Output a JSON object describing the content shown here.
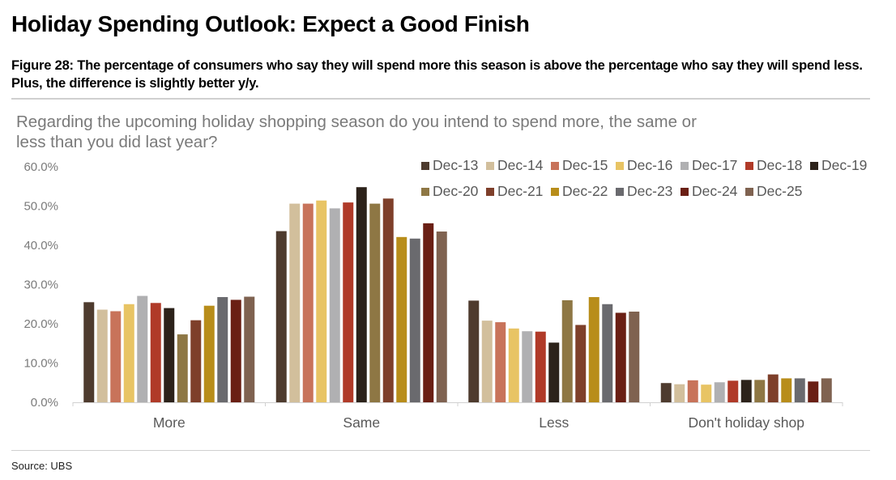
{
  "header": {
    "title": "Holiday Spending Outlook: Expect a Good Finish",
    "subtitle": "Figure 28: The percentage of consumers who say they will spend more this season is above the percentage who say they will spend less. Plus, the difference is slightly better y/y."
  },
  "footer": {
    "source": "Source: UBS"
  },
  "chart_data": {
    "type": "bar",
    "title": "Regarding the upcoming holiday shopping season do you intend to spend more, the same or less than you did last year?",
    "categories": [
      "More",
      "Same",
      "Less",
      "Don't holiday shop"
    ],
    "ylim": [
      0,
      60
    ],
    "yticks": [
      "0.0%",
      "10.0%",
      "20.0%",
      "30.0%",
      "40.0%",
      "50.0%",
      "60.0%"
    ],
    "grid": false,
    "legend_position": "top-right",
    "series": [
      {
        "name": "Dec-13",
        "color": "#4e3b2e",
        "values": [
          25.5,
          43.6,
          25.9,
          4.9
        ]
      },
      {
        "name": "Dec-14",
        "color": "#d2bf9c",
        "values": [
          23.6,
          50.6,
          20.8,
          4.6
        ]
      },
      {
        "name": "Dec-15",
        "color": "#c8735a",
        "values": [
          23.2,
          50.6,
          20.4,
          5.6
        ]
      },
      {
        "name": "Dec-16",
        "color": "#e8c464",
        "values": [
          25.0,
          51.4,
          18.8,
          4.5
        ]
      },
      {
        "name": "Dec-17",
        "color": "#b0b0b2",
        "values": [
          27.1,
          49.4,
          18.1,
          5.1
        ]
      },
      {
        "name": "Dec-18",
        "color": "#b03a28",
        "values": [
          25.3,
          50.9,
          18.0,
          5.5
        ]
      },
      {
        "name": "Dec-19",
        "color": "#2c221a",
        "values": [
          24.0,
          54.8,
          15.2,
          5.7
        ]
      },
      {
        "name": "Dec-20",
        "color": "#8e7744",
        "values": [
          17.3,
          50.6,
          26.0,
          5.7
        ]
      },
      {
        "name": "Dec-21",
        "color": "#7e3f2a",
        "values": [
          20.9,
          51.9,
          19.7,
          7.1
        ]
      },
      {
        "name": "Dec-22",
        "color": "#b88d1a",
        "values": [
          24.6,
          42.1,
          26.8,
          6.1
        ]
      },
      {
        "name": "Dec-23",
        "color": "#6a6a6e",
        "values": [
          26.8,
          41.7,
          25.0,
          6.1
        ]
      },
      {
        "name": "Dec-24",
        "color": "#6a1f14",
        "values": [
          26.1,
          45.6,
          22.8,
          5.3
        ]
      },
      {
        "name": "Dec-25",
        "color": "#7f6250",
        "values": [
          26.9,
          43.5,
          23.1,
          6.1
        ]
      }
    ]
  }
}
